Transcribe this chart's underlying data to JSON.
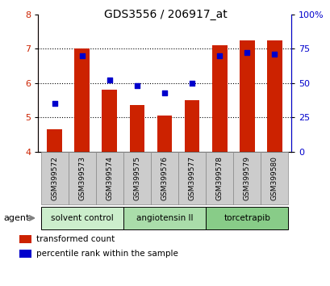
{
  "title": "GDS3556 / 206917_at",
  "samples": [
    "GSM399572",
    "GSM399573",
    "GSM399574",
    "GSM399575",
    "GSM399576",
    "GSM399577",
    "GSM399578",
    "GSM399579",
    "GSM399580"
  ],
  "transformed_counts": [
    4.65,
    7.0,
    5.8,
    5.35,
    5.05,
    5.5,
    7.1,
    7.25,
    7.25
  ],
  "percentile_ranks": [
    35,
    70,
    52,
    48,
    43,
    50,
    70,
    72,
    71
  ],
  "bar_bottom": 4.0,
  "ylim_left": [
    4,
    8
  ],
  "ylim_right": [
    0,
    100
  ],
  "yticks_left": [
    4,
    5,
    6,
    7,
    8
  ],
  "yticks_right": [
    0,
    25,
    50,
    75,
    100
  ],
  "yticklabels_right": [
    "0",
    "25",
    "50",
    "75",
    "100%"
  ],
  "bar_color": "#cc2200",
  "dot_color": "#0000cc",
  "groups": [
    {
      "label": "solvent control",
      "indices": [
        0,
        1,
        2
      ],
      "color": "#cceecc"
    },
    {
      "label": "angiotensin II",
      "indices": [
        3,
        4,
        5
      ],
      "color": "#aaddaa"
    },
    {
      "label": "torcetrapib",
      "indices": [
        6,
        7,
        8
      ],
      "color": "#88cc88"
    }
  ],
  "agent_label": "agent",
  "legend_bar_label": "transformed count",
  "legend_dot_label": "percentile rank within the sample",
  "sample_box_color": "#cccccc",
  "background_color": "#ffffff"
}
